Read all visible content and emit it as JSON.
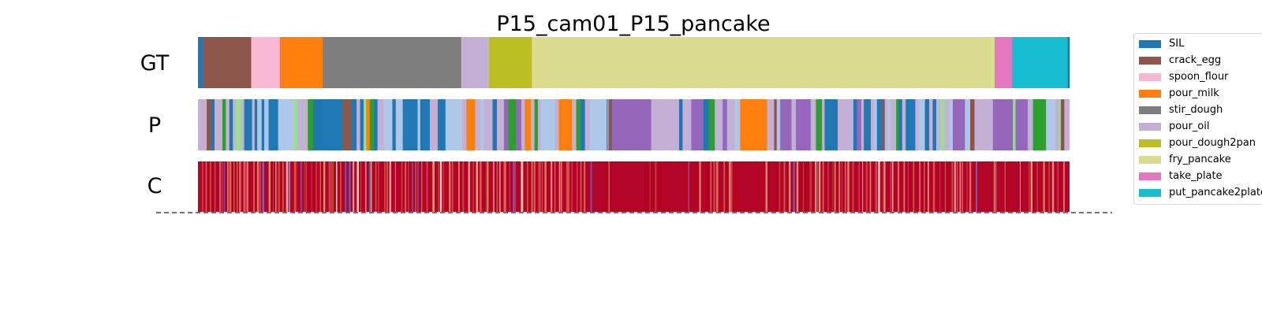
{
  "chart_data": {
    "type": "segmentation",
    "title": "P15_cam01_P15_pancake",
    "rows": [
      {
        "label": "GT",
        "kind": "categorical",
        "segments": [
          [
            "SIL",
            0,
            0.6
          ],
          [
            "crack_egg",
            0.6,
            6.1
          ],
          [
            "spoon_flour",
            6.1,
            9.4
          ],
          [
            "pour_milk",
            9.4,
            14.3
          ],
          [
            "stir_dough",
            14.3,
            30.2
          ],
          [
            "pour_oil",
            30.2,
            33.4
          ],
          [
            "pour_dough2pan",
            33.4,
            38.3
          ],
          [
            "fry_pancake",
            38.3,
            91.4
          ],
          [
            "take_plate",
            91.4,
            93.4
          ],
          [
            "put_pancake2plate",
            93.4,
            99.8
          ],
          [
            "SIL",
            99.8,
            100
          ]
        ]
      },
      {
        "label": "P",
        "kind": "categorical",
        "segments": [
          [
            "pour_oil",
            0,
            1
          ],
          [
            "crack_egg",
            1,
            1.5
          ],
          [
            "SIL",
            1.5,
            1.9
          ],
          [
            "pour_oil",
            1.9,
            2.8
          ],
          [
            "green",
            2.8,
            3.2
          ],
          [
            "pour_oil",
            3.2,
            3.6
          ],
          [
            "SIL",
            3.6,
            4
          ],
          [
            "pour_oil",
            4,
            4.3
          ],
          [
            "light_green",
            4.3,
            5
          ],
          [
            "pour_oil",
            5,
            5.3
          ],
          [
            "SIL",
            5.3,
            6.2
          ],
          [
            "pour_oil",
            6.2,
            6.5
          ],
          [
            "SIL",
            6.5,
            6.8
          ],
          [
            "light_blue",
            6.8,
            7.3
          ],
          [
            "SIL",
            7.3,
            7.6
          ],
          [
            "light_blue",
            7.6,
            8.1
          ],
          [
            "SIL",
            8.1,
            9.2
          ],
          [
            "light_blue",
            9.2,
            11
          ],
          [
            "light_green",
            11,
            11.4
          ],
          [
            "pour_oil",
            11.4,
            12.6
          ],
          [
            "green",
            12.6,
            13.2
          ],
          [
            "SIL",
            13.2,
            13.7
          ],
          [
            "SIL",
            13.7,
            16.6
          ],
          [
            "crack_egg",
            16.6,
            17.6
          ],
          [
            "SIL",
            17.6,
            18.2
          ],
          [
            "pour_oil",
            18.2,
            18.6
          ],
          [
            "SIL",
            18.6,
            19
          ],
          [
            "light_green",
            19,
            19.3
          ],
          [
            "pour_milk",
            19.3,
            19.7
          ],
          [
            "green",
            19.7,
            20.2
          ],
          [
            "SIL",
            20.2,
            20.6
          ],
          [
            "pour_oil",
            20.6,
            21.3
          ],
          [
            "light_blue",
            21.3,
            22.3
          ],
          [
            "SIL",
            22.3,
            22.7
          ],
          [
            "light_blue",
            22.7,
            23.5
          ],
          [
            "SIL",
            23.5,
            25.2
          ],
          [
            "light_blue",
            25.2,
            25.5
          ],
          [
            "SIL",
            25.5,
            26.6
          ],
          [
            "pour_oil",
            26.6,
            27.5
          ],
          [
            "SIL",
            27.5,
            28.4
          ],
          [
            "light_blue",
            28.4,
            30.3
          ],
          [
            "pour_oil",
            30.3,
            30.8
          ],
          [
            "pour_milk",
            30.8,
            31.8
          ],
          [
            "pour_oil",
            31.8,
            32.4
          ],
          [
            "light_blue",
            32.4,
            32.8
          ],
          [
            "pour_oil",
            32.8,
            33.8
          ],
          [
            "SIL",
            33.8,
            34.3
          ],
          [
            "pour_oil",
            34.3,
            35.1
          ],
          [
            "purple",
            35.1,
            35.6
          ],
          [
            "green",
            35.6,
            36.5
          ],
          [
            "purple",
            36.5,
            37.1
          ],
          [
            "pour_oil",
            37.1,
            37.5
          ],
          [
            "pour_milk",
            37.5,
            38.2
          ],
          [
            "pour_oil",
            38.2,
            38.6
          ],
          [
            "green",
            38.6,
            39
          ],
          [
            "pour_oil",
            39,
            39.3
          ],
          [
            "light_blue",
            39.3,
            40.9
          ],
          [
            "pour_oil",
            40.9,
            41.4
          ],
          [
            "pour_milk",
            41.4,
            42.9
          ],
          [
            "pour_oil",
            42.9,
            43.4
          ],
          [
            "green",
            43.4,
            43.9
          ],
          [
            "SIL",
            43.9,
            44.4
          ],
          [
            "pour_oil",
            44.4,
            45
          ],
          [
            "light_blue",
            45,
            46.9
          ],
          [
            "SIL",
            46.9,
            47
          ],
          [
            "light_blue",
            47,
            47.1
          ],
          [
            "crack_egg",
            47.1,
            47.5
          ],
          [
            "purple",
            47.5,
            52
          ],
          [
            "pour_oil",
            52,
            55.2
          ],
          [
            "SIL",
            55.2,
            55.6
          ],
          [
            "pour_oil",
            55.6,
            56.6
          ],
          [
            "purple",
            56.6,
            58
          ],
          [
            "SIL",
            58,
            58.6
          ],
          [
            "green",
            58.6,
            59.3
          ],
          [
            "pour_oil",
            59.3,
            60.2
          ],
          [
            "purple",
            60.2,
            60.7
          ],
          [
            "pour_oil",
            60.7,
            61.6
          ],
          [
            "light_blue",
            61.6,
            62.2
          ],
          [
            "pour_milk",
            62.2,
            65.3
          ],
          [
            "pour_oil",
            65.3,
            66.1
          ],
          [
            "crack_egg",
            66.1,
            66.4
          ],
          [
            "light_blue",
            66.4,
            66.8
          ],
          [
            "purple",
            66.8,
            68.1
          ],
          [
            "pour_oil",
            68.1,
            68.6
          ],
          [
            "purple",
            68.6,
            70.3
          ],
          [
            "pour_oil",
            70.3,
            70.9
          ],
          [
            "green",
            70.9,
            71.6
          ],
          [
            "pour_oil",
            71.6,
            71.9
          ],
          [
            "SIL",
            71.9,
            73.4
          ],
          [
            "pour_oil",
            73.4,
            75.2
          ],
          [
            "SIL",
            75.2,
            75.6
          ],
          [
            "purple",
            75.6,
            76.1
          ],
          [
            "pour_oil",
            76.1,
            76.4
          ],
          [
            "SIL",
            76.4,
            77.2
          ],
          [
            "pour_oil",
            77.2,
            77.6
          ],
          [
            "light_blue",
            77.6,
            77.9
          ],
          [
            "SIL",
            77.9,
            78.5
          ],
          [
            "crack_egg",
            78.5,
            78.8
          ],
          [
            "pour_oil",
            78.8,
            79.1
          ],
          [
            "light_blue",
            79.1,
            79.4
          ],
          [
            "pour_oil",
            79.4,
            80.1
          ],
          [
            "green",
            80.1,
            80.4
          ],
          [
            "SIL",
            80.4,
            80.8
          ],
          [
            "pour_oil",
            80.8,
            81.2
          ],
          [
            "SIL",
            81.2,
            82.3
          ],
          [
            "pour_oil",
            82.3,
            82.7
          ],
          [
            "light_blue",
            82.7,
            83.4
          ],
          [
            "SIL",
            83.4,
            83.9
          ],
          [
            "pour_oil",
            83.9,
            84.3
          ],
          [
            "SIL",
            84.3,
            84.7
          ],
          [
            "pour_oil",
            84.7,
            85.2
          ],
          [
            "light_green",
            85.2,
            85.7
          ],
          [
            "pour_oil",
            85.7,
            86.2
          ],
          [
            "light_blue",
            86.2,
            86.6
          ],
          [
            "purple",
            86.6,
            88
          ],
          [
            "light_blue",
            88,
            88.6
          ],
          [
            "crack_egg",
            88.6,
            89.1
          ],
          [
            "pour_oil",
            89.1,
            91.2
          ],
          [
            "purple",
            91.2,
            93.5
          ],
          [
            "light_green",
            93.5,
            93.8
          ],
          [
            "purple",
            93.8,
            95.2
          ],
          [
            "pour_oil",
            95.2,
            95.8
          ],
          [
            "green",
            95.8,
            97.3
          ],
          [
            "light_blue",
            97.3,
            98.4
          ],
          [
            "pour_oil",
            98.4,
            98.8
          ],
          [
            "light_green",
            98.8,
            99
          ],
          [
            "crack_egg",
            99,
            99.4
          ],
          [
            "pour_oil",
            99.4,
            100
          ]
        ]
      },
      {
        "label": "C",
        "kind": "confidence"
      }
    ],
    "legend": [
      {
        "label": "SIL",
        "color": "#1f77b4"
      },
      {
        "label": "crack_egg",
        "color": "#8c564b"
      },
      {
        "label": "spoon_flour",
        "color": "#f7b6d2"
      },
      {
        "label": "pour_milk",
        "color": "#ff7f0e"
      },
      {
        "label": "stir_dough",
        "color": "#7f7f7f"
      },
      {
        "label": "pour_oil",
        "color": "#c5b0d5"
      },
      {
        "label": "pour_dough2pan",
        "color": "#bcbd22"
      },
      {
        "label": "fry_pancake",
        "color": "#dbdb8d"
      },
      {
        "label": "take_plate",
        "color": "#e377c2"
      },
      {
        "label": "put_pancake2plate",
        "color": "#17becf"
      }
    ],
    "extra_colors": {
      "green": "#2ca02c",
      "light_green": "#98df8a",
      "light_blue": "#aec7e8",
      "purple": "#9467bd"
    },
    "confidence_colors": {
      "high": "#b40426",
      "mid": "#d6604d",
      "light": "#f4a582",
      "pale": "#fddbc7",
      "cool": "#6a6fd8"
    },
    "x_range": [
      0,
      100
    ],
    "baseline_style": "dashed"
  }
}
